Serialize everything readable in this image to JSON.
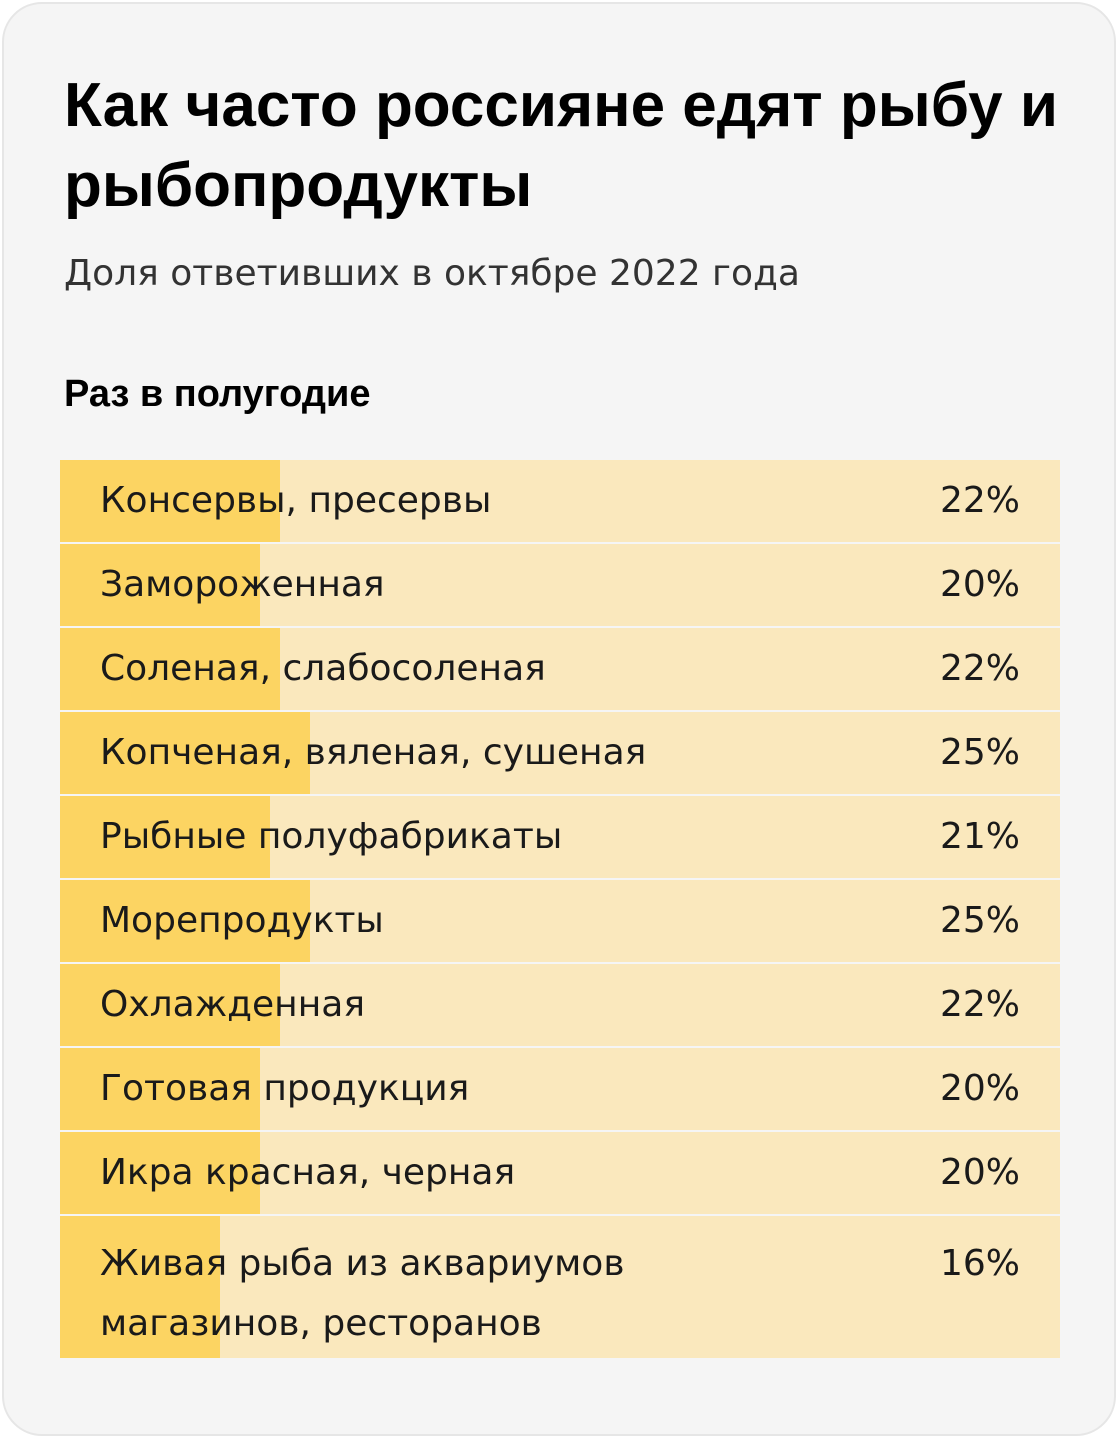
{
  "title": "Как часто россияне едят рыбу и рыбопродукты",
  "subtitle": "Доля ответивших в октябре 2022 года",
  "section_label": "Раз в полугодие",
  "colors": {
    "bar_fill": "#fcd462",
    "bar_track": "#fae8bd",
    "card_background": "#f5f5f5"
  },
  "chart_data": {
    "type": "bar",
    "orientation": "horizontal",
    "title": "Как часто россияне едят рыбу и рыбопродукты",
    "subtitle": "Доля ответивших в октябре 2022 года",
    "group": "Раз в полугодие",
    "xlim": [
      0,
      100
    ],
    "unit": "%",
    "categories": [
      "Консервы, пресервы",
      "Замороженная",
      "Соленая, слабосоленая",
      "Копченая, вяленая, сушеная",
      "Рыбные полуфабрикаты",
      "Морепродукты",
      "Охлажденная",
      "Готовая продукция",
      "Икра красная, черная",
      "Живая рыба из аквариумов\nмагазинов, ресторанов"
    ],
    "values": [
      22,
      20,
      22,
      25,
      21,
      25,
      22,
      20,
      20,
      16
    ],
    "value_labels": [
      "22%",
      "20%",
      "22%",
      "25%",
      "21%",
      "25%",
      "22%",
      "20%",
      "20%",
      "16%"
    ]
  }
}
